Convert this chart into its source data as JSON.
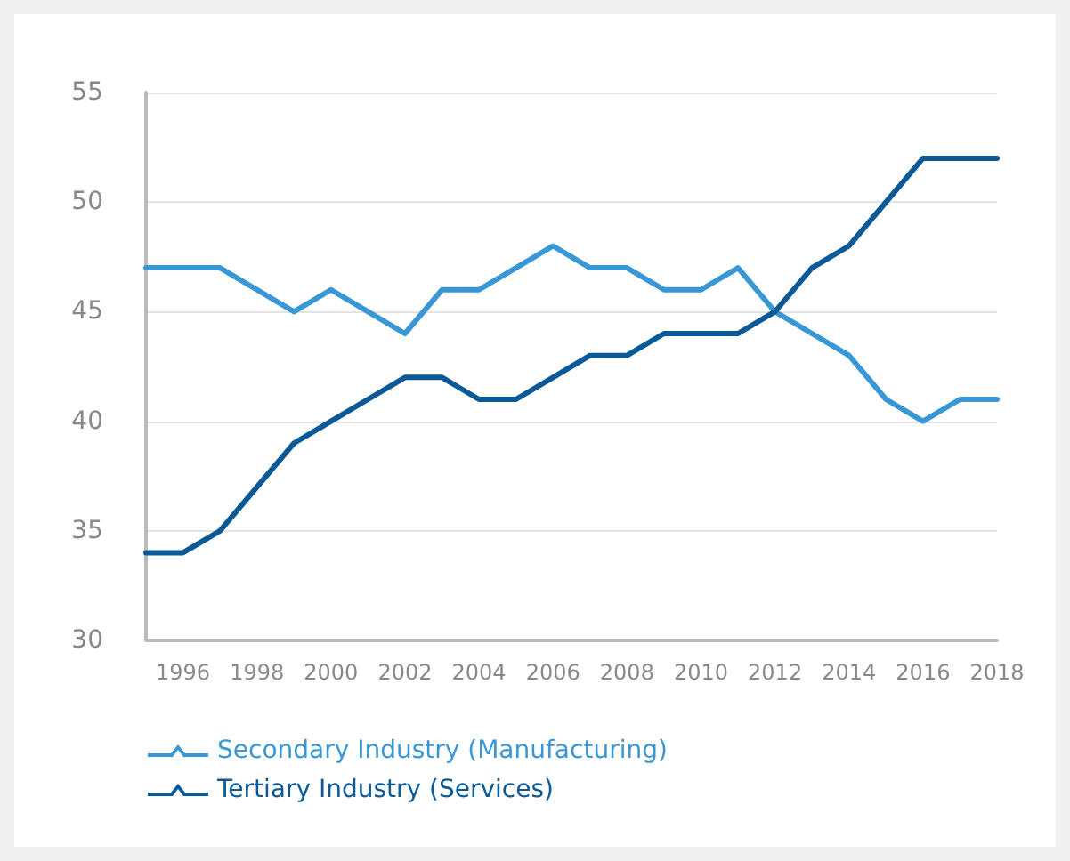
{
  "chart_data": {
    "type": "line",
    "categories": [
      null,
      "1996",
      null,
      "1998",
      null,
      "2000",
      null,
      "2002",
      null,
      "2004",
      null,
      "2006",
      null,
      "2008",
      null,
      "2010",
      null,
      "2012",
      null,
      "2014",
      null,
      "2016",
      null,
      "2018"
    ],
    "series": [
      {
        "name": "Secondary Industry (Manufacturing)",
        "color": "#3a97d5",
        "values": [
          47,
          47,
          47,
          46,
          45,
          46,
          45,
          44,
          46,
          46,
          47,
          48,
          47,
          47,
          46,
          46,
          47,
          45,
          44,
          43,
          41,
          40,
          41,
          41
        ]
      },
      {
        "name": "Tertiary Industry (Services)",
        "color": "#0b5a97",
        "values": [
          34,
          34,
          35,
          37,
          39,
          40,
          41,
          42,
          42,
          41,
          41,
          42,
          43,
          43,
          44,
          44,
          44,
          45,
          47,
          48,
          50,
          52,
          52,
          52
        ]
      }
    ],
    "ylim": [
      30,
      55
    ],
    "yticks": [
      30,
      35,
      40,
      45,
      50,
      55
    ],
    "grid": "y",
    "legend": "bottom",
    "marker": "none",
    "line_style": "solid"
  }
}
